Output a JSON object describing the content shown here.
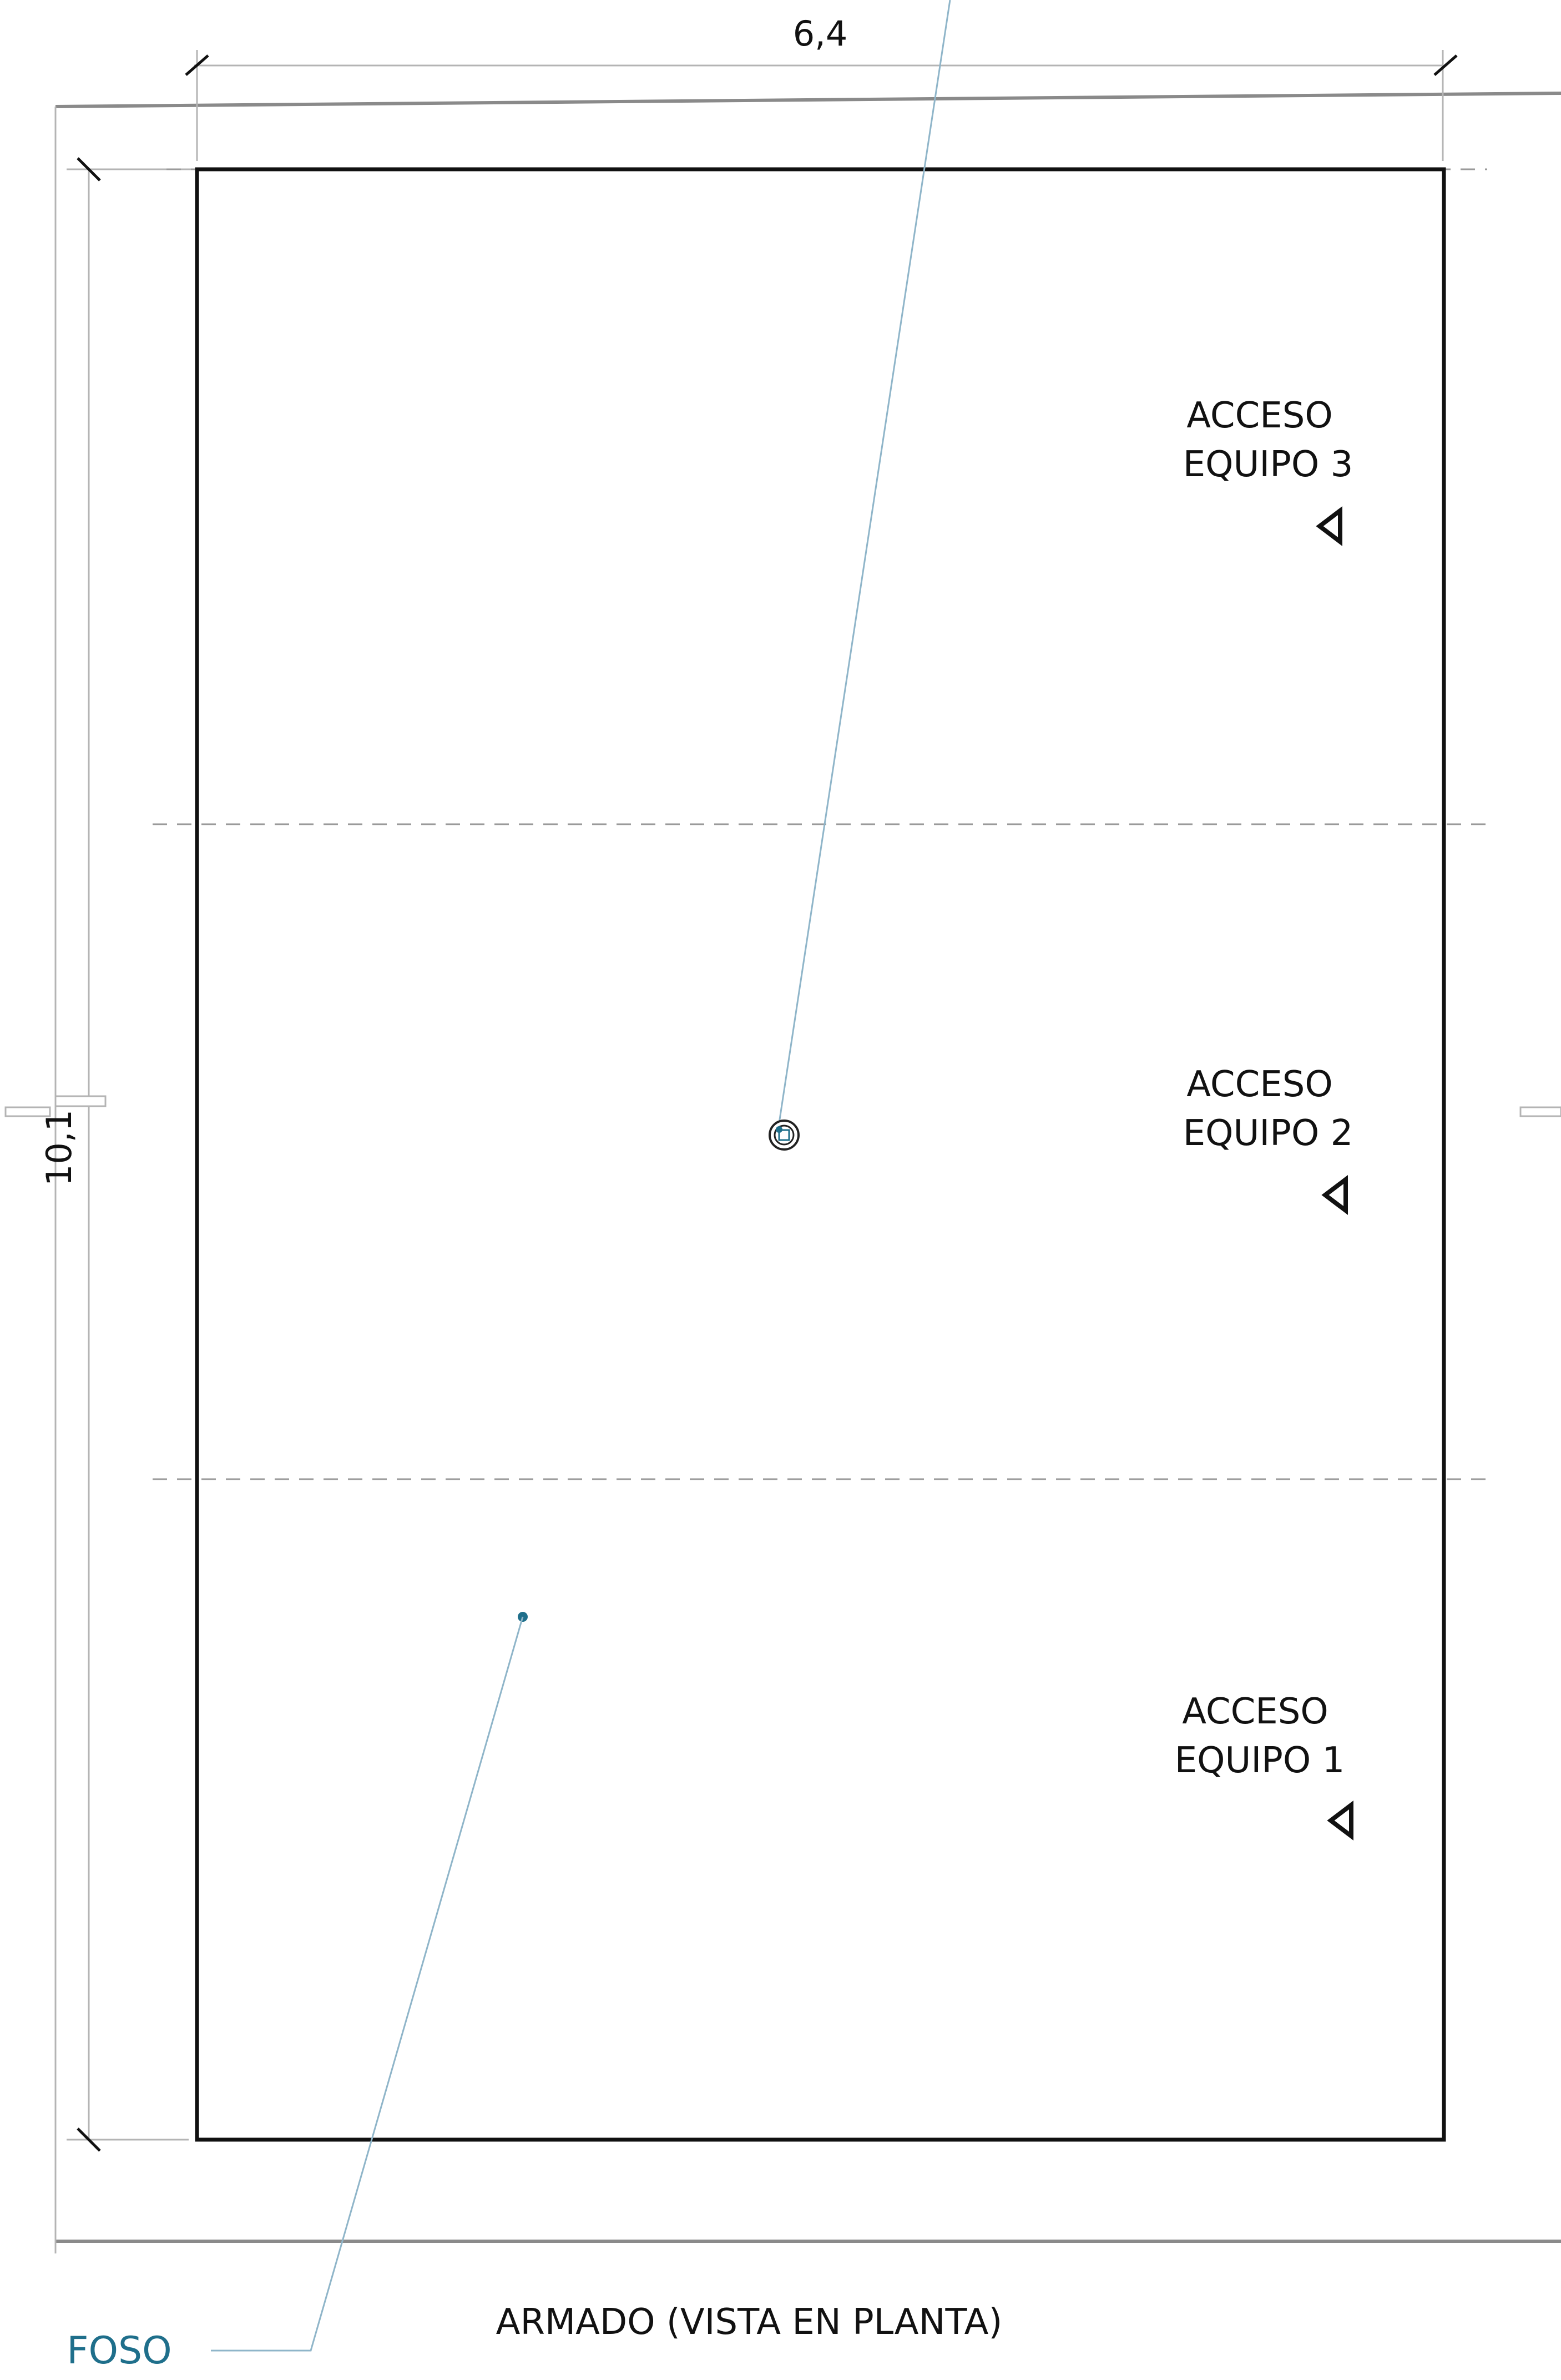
{
  "dimensions": {
    "width_label": "6,4",
    "height_label": "10,1"
  },
  "access_points": [
    {
      "line1": "ACCESO",
      "line2": "EQUIPO 3"
    },
    {
      "line1": "ACCESO",
      "line2": "EQUIPO 2"
    },
    {
      "line1": "ACCESO",
      "line2": "EQUIPO 1"
    }
  ],
  "labels": {
    "pit": "FOSO",
    "caption": "ARMADO (VISTA EN PLANTA)"
  },
  "colors": {
    "outline": "#111111",
    "accent": "#1f6f8b",
    "leader": "#8fb5c9"
  }
}
